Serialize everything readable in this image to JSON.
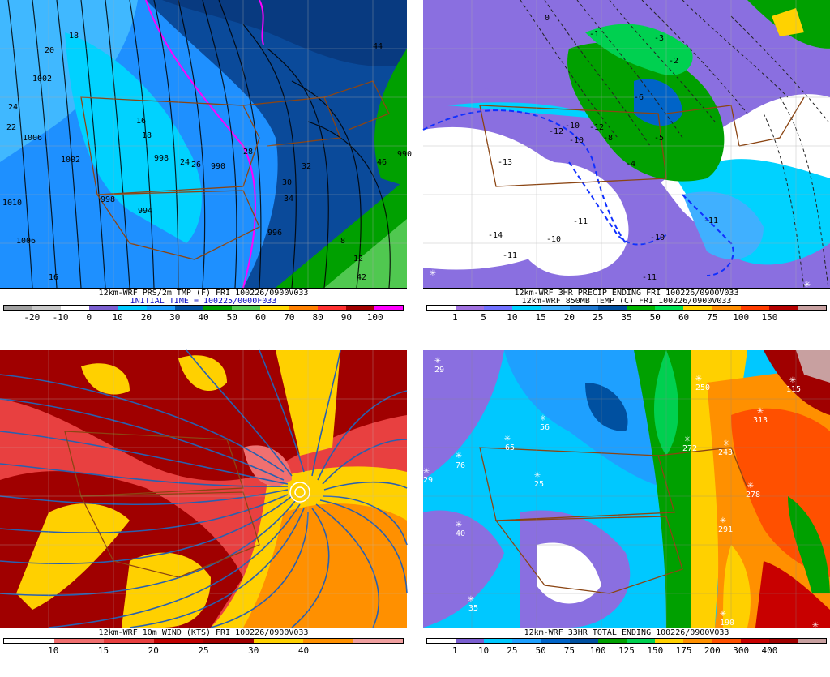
{
  "panels": [
    {
      "caption1": "12km-WRF PRS/2m TMP (F) FRI 100226/0900V033",
      "caption2": "INITIAL TIME = 100225/0000F033",
      "legend_colors": [
        "#a0a0a0",
        "#c8c8c8",
        "#ffffff",
        "#7b5fd0",
        "#00c8ff",
        "#1ea0ff",
        "#0050a0",
        "#00a000",
        "#50c850",
        "#ffd700",
        "#ff8000",
        "#ff3030",
        "#a00000",
        "#ff00ff"
      ],
      "legend_ticks": [
        "-20",
        "-10",
        "0",
        "10",
        "20",
        "30",
        "40",
        "50",
        "60",
        "70",
        "80",
        "90",
        "100"
      ],
      "map_labels": [
        "18",
        "20",
        "24",
        "22",
        "1006",
        "1002",
        "1010",
        "16",
        "18",
        "998",
        "24",
        "26",
        "990",
        "32",
        "994",
        "30",
        "998",
        "996",
        "28",
        "34",
        "1002",
        "16",
        "1006",
        "8",
        "12",
        "42",
        "44",
        "46",
        "990"
      ]
    },
    {
      "caption1": "12km-WRF 3HR PRECIP ENDING FRI 100226/0900V033",
      "caption2": "12km-WRF 850MB TEMP (C) FRI 100226/0900V033",
      "legend_colors": [
        "#ffffff",
        "#a070e0",
        "#7070ff",
        "#00d2ff",
        "#40b0ff",
        "#1e78d0",
        "#0050a0",
        "#00b400",
        "#00e050",
        "#ffd200",
        "#ff8c00",
        "#ff3c00",
        "#b40000",
        "#c8a0a0"
      ],
      "legend_ticks": [
        "1",
        "5",
        "10",
        "15",
        "20",
        "25",
        "35",
        "50",
        "60",
        "75",
        "100",
        "150"
      ],
      "map_labels": [
        "0",
        "-1",
        "-3",
        "-2",
        "-12",
        "-10",
        "-8",
        "-13",
        "-10",
        "-6",
        "-5",
        "-11",
        "-14",
        "-10",
        "-12",
        "-11",
        "-4",
        "-10",
        "-11",
        "-11"
      ]
    },
    {
      "caption1": "12km-WRF 10m WIND (KTS) FRI 100226/0900V033",
      "caption2": "",
      "legend_colors": [
        "#ffffff",
        "#f07070",
        "#e84040",
        "#c00000",
        "#a00000",
        "#ffd000",
        "#ff9000",
        "#f0a0a0"
      ],
      "legend_ticks": [
        "10",
        "15",
        "20",
        "25",
        "30",
        "40"
      ],
      "map_labels": []
    },
    {
      "caption1": "12km-WRF 33HR TOTAL ENDING 100226/0900V033",
      "caption2": "",
      "legend_colors": [
        "#ffffff",
        "#7a5fd0",
        "#00c8ff",
        "#1ea0ff",
        "#0064c8",
        "#0050a0",
        "#00a000",
        "#00d050",
        "#ffd000",
        "#ff9000",
        "#ff5000",
        "#c80000",
        "#a00000",
        "#c8a0a0"
      ],
      "legend_ticks": [
        "1",
        "10",
        "25",
        "50",
        "75",
        "100",
        "125",
        "150",
        "175",
        "200",
        "300",
        "400"
      ],
      "map_labels": [
        "29",
        "56",
        "65",
        "76",
        "29",
        "25",
        "40",
        "35",
        "250",
        "272",
        "243",
        "313",
        "278",
        "291",
        "190",
        "115"
      ]
    }
  ]
}
